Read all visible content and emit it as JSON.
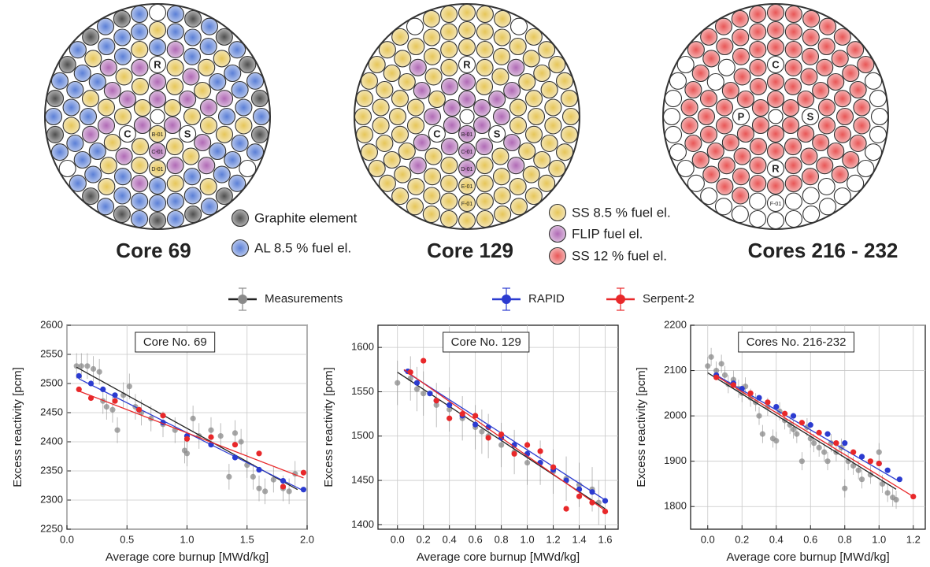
{
  "element_types": [
    {
      "label": "Graphite element",
      "color": "#4f4f4f"
    },
    {
      "label": "AL 8.5 % fuel el.",
      "color": "#5b7fd6"
    },
    {
      "label": "SS 8.5 % fuel el.",
      "color": "#e6c65a"
    },
    {
      "label": "FLIP fuel el.",
      "color": "#b06ab5"
    },
    {
      "label": "SS 12 % fuel el.",
      "color": "#e85656"
    }
  ],
  "cores": [
    {
      "title": "Core 69",
      "rings": [
        "232323",
        "32.2323232.2",
        "232323232.32323232",
        "121312131213121312131213",
        "111211121112111211121112111211",
        "010101.10101010101.10101010101.10101"
      ],
      "labels": [
        {
          "text": "R",
          "ring": 3,
          "pos": 9
        },
        {
          "text": "C",
          "ring": 2,
          "pos": 10
        },
        {
          "text": "S",
          "ring": 2,
          "pos": 2
        },
        {
          "text": "B-01",
          "ring": 1,
          "pos": 0
        },
        {
          "text": "C-01",
          "ring": 2,
          "pos": 0
        },
        {
          "text": "D-01",
          "ring": 3,
          "pos": 0
        }
      ]
    },
    {
      "title": "Core 129",
      "rings": [
        "333333",
        "33.3323323.3",
        "322322322.22322322",
        "222322222322222322222322",
        "222222222222222222222222222222",
        "222222222222222.22222.22222222222222"
      ],
      "labels": [
        {
          "text": "R",
          "ring": 3,
          "pos": 9
        },
        {
          "text": "C",
          "ring": 2,
          "pos": 10
        },
        {
          "text": "S",
          "ring": 2,
          "pos": 2
        },
        {
          "text": "B-01",
          "ring": 1,
          "pos": 0
        },
        {
          "text": "C-01",
          "ring": 2,
          "pos": 0
        },
        {
          "text": "D-01",
          "ring": 3,
          "pos": 0
        },
        {
          "text": "E-01",
          "ring": 4,
          "pos": 0
        },
        {
          "text": "F-01",
          "ring": 5,
          "pos": 0
        }
      ]
    },
    {
      "title": "Cores 216 - 232",
      "rings": [
        "444444",
        "444.44444.44",
        ".44444444.44444444",
        "444444444444444..4444444",
        "....4444444444444444444444444..",
        "............444444444444............"
      ],
      "labels": [
        {
          "text": "C",
          "ring": 3,
          "pos": 9
        },
        {
          "text": "S",
          "ring": 2,
          "pos": 3
        },
        {
          "text": "P",
          "ring": 2,
          "pos": 9
        },
        {
          "text": "R",
          "ring": 3,
          "pos": 0
        },
        {
          "text": "F-01",
          "ring": 5,
          "pos": 0
        }
      ]
    }
  ],
  "chart_data": [
    {
      "type": "scatter",
      "title": "Core No. 69",
      "xlabel": "Average core burnup [MWd/kg]",
      "ylabel": "Excess reactivity [pcm]",
      "xlim": [
        0,
        2
      ],
      "ylim": [
        2250,
        2600
      ],
      "xticks": [
        {
          "value": 0,
          "label": "0.0"
        },
        0.5,
        {
          "value": 1,
          "label": "1.0"
        },
        1.5,
        {
          "value": 2,
          "label": "2.0"
        }
      ],
      "yticks": [
        2250,
        2300,
        2350,
        2400,
        2450,
        2500,
        2550,
        2600
      ],
      "grid": true,
      "series": [
        {
          "name": "Measurements",
          "color": "#8a8a8a",
          "line_color": "#222222",
          "yerr": 22,
          "x": [
            0.08,
            0.12,
            0.17,
            0.22,
            0.27,
            0.3,
            0.33,
            0.38,
            0.42,
            0.47,
            0.52,
            0.57,
            0.62,
            0.7,
            0.8,
            0.9,
            0.98,
            1.0,
            1.05,
            1.1,
            1.2,
            1.28,
            1.35,
            1.4,
            1.45,
            1.5,
            1.55,
            1.6,
            1.65,
            1.72,
            1.8,
            1.85,
            1.9
          ],
          "values": [
            2530,
            2530,
            2530,
            2525,
            2520,
            2470,
            2460,
            2455,
            2420,
            2480,
            2495,
            2460,
            2450,
            2440,
            2430,
            2420,
            2385,
            2380,
            2440,
            2410,
            2420,
            2410,
            2340,
            2415,
            2400,
            2360,
            2340,
            2320,
            2315,
            2335,
            2320,
            2315,
            2345
          ],
          "fit": {
            "x": [
              0.08,
              1.92
            ],
            "values": [
              2528,
              2318
            ]
          }
        },
        {
          "name": "RAPID",
          "color": "#2b3bd0",
          "line_color": "#2b3bd0",
          "x": [
            0.1,
            0.2,
            0.3,
            0.4,
            0.6,
            0.8,
            1.0,
            1.2,
            1.4,
            1.6,
            1.8,
            1.97
          ],
          "values": [
            2513,
            2500,
            2490,
            2480,
            2455,
            2433,
            2410,
            2395,
            2373,
            2352,
            2333,
            2318
          ],
          "fit": {
            "x": [
              0.1,
              1.97
            ],
            "values": [
              2508,
              2316
            ]
          }
        },
        {
          "name": "Serpent-2",
          "color": "#e8282a",
          "line_color": "#e8282a",
          "x": [
            0.1,
            0.2,
            0.4,
            0.6,
            0.8,
            1.0,
            1.2,
            1.4,
            1.6,
            1.8,
            1.97
          ],
          "values": [
            2490,
            2475,
            2470,
            2455,
            2445,
            2405,
            2408,
            2395,
            2380,
            2323,
            2347
          ],
          "fit": {
            "x": [
              0.1,
              1.97
            ],
            "values": [
              2487,
              2338
            ]
          }
        }
      ]
    },
    {
      "type": "scatter",
      "title": "Core No. 129",
      "xlabel": "Average core burnup [MWd/kg]",
      "ylabel": "Excess reactivity [pcm]",
      "xlim": [
        -0.15,
        1.7
      ],
      "ylim": [
        1395,
        1625
      ],
      "xticks": [
        {
          "value": 0,
          "label": "0.0"
        },
        0.2,
        0.4,
        0.6,
        0.8,
        {
          "value": 1,
          "label": "1.0"
        },
        1.2,
        1.4,
        1.6
      ],
      "yticks": [
        1400,
        1450,
        1500,
        1550,
        1600
      ],
      "grid": true,
      "series": [
        {
          "color": "#8a8a8a",
          "line_color": "#222222",
          "yerr": 25,
          "x": [
            0.0,
            0.1,
            0.15,
            0.2,
            0.3,
            0.4,
            0.5,
            0.6,
            0.65,
            0.7,
            0.8,
            0.9,
            1.0,
            1.1,
            1.2,
            1.3,
            1.4,
            1.5,
            1.55
          ],
          "values": [
            1560,
            1565,
            1553,
            1548,
            1535,
            1530,
            1520,
            1510,
            1505,
            1500,
            1490,
            1482,
            1470,
            1470,
            1460,
            1452,
            1445,
            1440,
            1425
          ],
          "fit": {
            "x": [
              0.0,
              1.6
            ],
            "values": [
              1572,
              1418
            ]
          }
        },
        {
          "color": "#2b3bd0",
          "line_color": "#2b3bd0",
          "x": [
            0.08,
            0.15,
            0.25,
            0.3,
            0.4,
            0.5,
            0.6,
            0.7,
            0.8,
            0.9,
            1.0,
            1.1,
            1.2,
            1.3,
            1.4,
            1.5,
            1.6
          ],
          "values": [
            1573,
            1560,
            1548,
            1540,
            1535,
            1523,
            1513,
            1510,
            1498,
            1490,
            1480,
            1470,
            1462,
            1450,
            1440,
            1437,
            1427
          ],
          "fit": {
            "x": [
              0.05,
              1.62
            ],
            "values": [
              1574,
              1426
            ]
          }
        },
        {
          "color": "#e8282a",
          "line_color": "#e8282a",
          "x": [
            0.1,
            0.2,
            0.3,
            0.4,
            0.5,
            0.6,
            0.7,
            0.8,
            0.9,
            1.0,
            1.1,
            1.2,
            1.3,
            1.4,
            1.5,
            1.6
          ],
          "values": [
            1572,
            1585,
            1540,
            1520,
            1525,
            1523,
            1498,
            1502,
            1480,
            1490,
            1483,
            1465,
            1418,
            1432,
            1425,
            1415
          ],
          "fit": {
            "x": [
              0.05,
              1.62
            ],
            "values": [
              1575,
              1414
            ]
          }
        }
      ]
    },
    {
      "type": "scatter",
      "title": "Cores No. 216-232",
      "xlabel": "Average core burnup [MWd/kg]",
      "ylabel": "Excess reactivity [pcm]",
      "xlim": [
        -0.1,
        1.27
      ],
      "ylim": [
        1750,
        2200
      ],
      "xticks": [
        {
          "value": 0,
          "label": "0.0"
        },
        0.2,
        0.4,
        0.6,
        0.8,
        {
          "value": 1,
          "label": "1.0"
        },
        1.2
      ],
      "yticks": [
        1800,
        1900,
        2000,
        2100,
        2200
      ],
      "grid": true,
      "series": [
        {
          "color": "#8a8a8a",
          "line_color": "#222222",
          "yerr": 20,
          "x": [
            0.0,
            0.02,
            0.05,
            0.08,
            0.1,
            0.12,
            0.15,
            0.18,
            0.2,
            0.22,
            0.25,
            0.28,
            0.3,
            0.32,
            0.35,
            0.38,
            0.4,
            0.42,
            0.45,
            0.48,
            0.5,
            0.52,
            0.55,
            0.58,
            0.6,
            0.62,
            0.65,
            0.68,
            0.7,
            0.72,
            0.75,
            0.78,
            0.8,
            0.82,
            0.85,
            0.88,
            0.9,
            0.95,
            1.0,
            1.02,
            1.05,
            1.08,
            1.1
          ],
          "values": [
            2110,
            2130,
            2100,
            2115,
            2090,
            2070,
            2080,
            2060,
            2050,
            2065,
            2040,
            2030,
            2000,
            1960,
            2020,
            1950,
            1945,
            2010,
            1990,
            1980,
            1970,
            1960,
            1900,
            1975,
            1950,
            1940,
            1930,
            1920,
            1900,
            1940,
            1920,
            1930,
            1840,
            1900,
            1890,
            1880,
            1860,
            1870,
            1920,
            1850,
            1830,
            1820,
            1815
          ],
          "fit": {
            "x": [
              0.0,
              1.1
            ],
            "values": [
              2095,
              1838
            ]
          }
        },
        {
          "color": "#2b3bd0",
          "line_color": "#2b3bd0",
          "x": [
            0.05,
            0.15,
            0.2,
            0.3,
            0.4,
            0.5,
            0.6,
            0.7,
            0.8,
            0.9,
            1.0,
            1.05,
            1.12
          ],
          "values": [
            2090,
            2072,
            2060,
            2040,
            2020,
            2000,
            1980,
            1960,
            1940,
            1910,
            1895,
            1880,
            1860
          ],
          "fit": {
            "x": [
              0.05,
              1.12
            ],
            "values": [
              2090,
              1855
            ]
          }
        },
        {
          "color": "#e8282a",
          "line_color": "#e8282a",
          "x": [
            0.05,
            0.15,
            0.25,
            0.35,
            0.45,
            0.55,
            0.65,
            0.75,
            0.85,
            0.95,
            1.0,
            1.2
          ],
          "values": [
            2085,
            2068,
            2050,
            2030,
            2005,
            1985,
            1963,
            1940,
            1920,
            1900,
            1895,
            1822
          ],
          "fit": {
            "x": [
              0.05,
              1.2
            ],
            "values": [
              2088,
              1822
            ]
          }
        }
      ]
    }
  ]
}
